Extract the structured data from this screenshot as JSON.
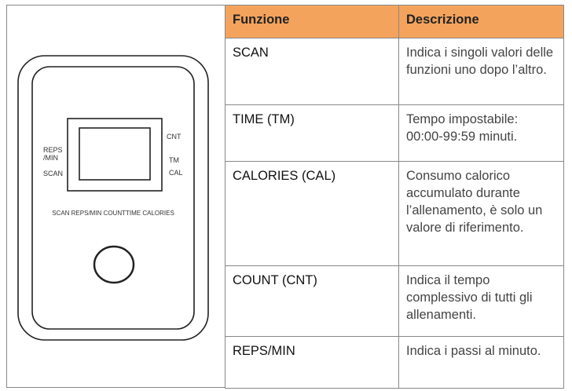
{
  "device": {
    "reps_min": [
      "REPS",
      "/MIN"
    ],
    "scan": "SCAN",
    "cnt": "CNT",
    "tm": "TM",
    "cal": "CAL",
    "button_row": "SCAN REPS/MIN COUNTTIME CALORIES"
  },
  "table": {
    "header": [
      "Funzione",
      "Descrizione"
    ],
    "rows": [
      [
        "SCAN",
        "Indica i singoli valori delle funzioni uno dopo l’altro."
      ],
      [
        "TIME (TM)",
        "Tempo impostabile: 00:00-99:59 minuti."
      ],
      [
        "CALORIES (CAL)",
        "Consumo calorico accumulato durante l’allenamento, è solo un valore di riferimento."
      ],
      [
        "COUNT (CNT)",
        "Indica il tempo complessivo di tutti gli allenamenti."
      ],
      [
        "REPS/MIN",
        "Indica i passi al minuto."
      ]
    ]
  }
}
